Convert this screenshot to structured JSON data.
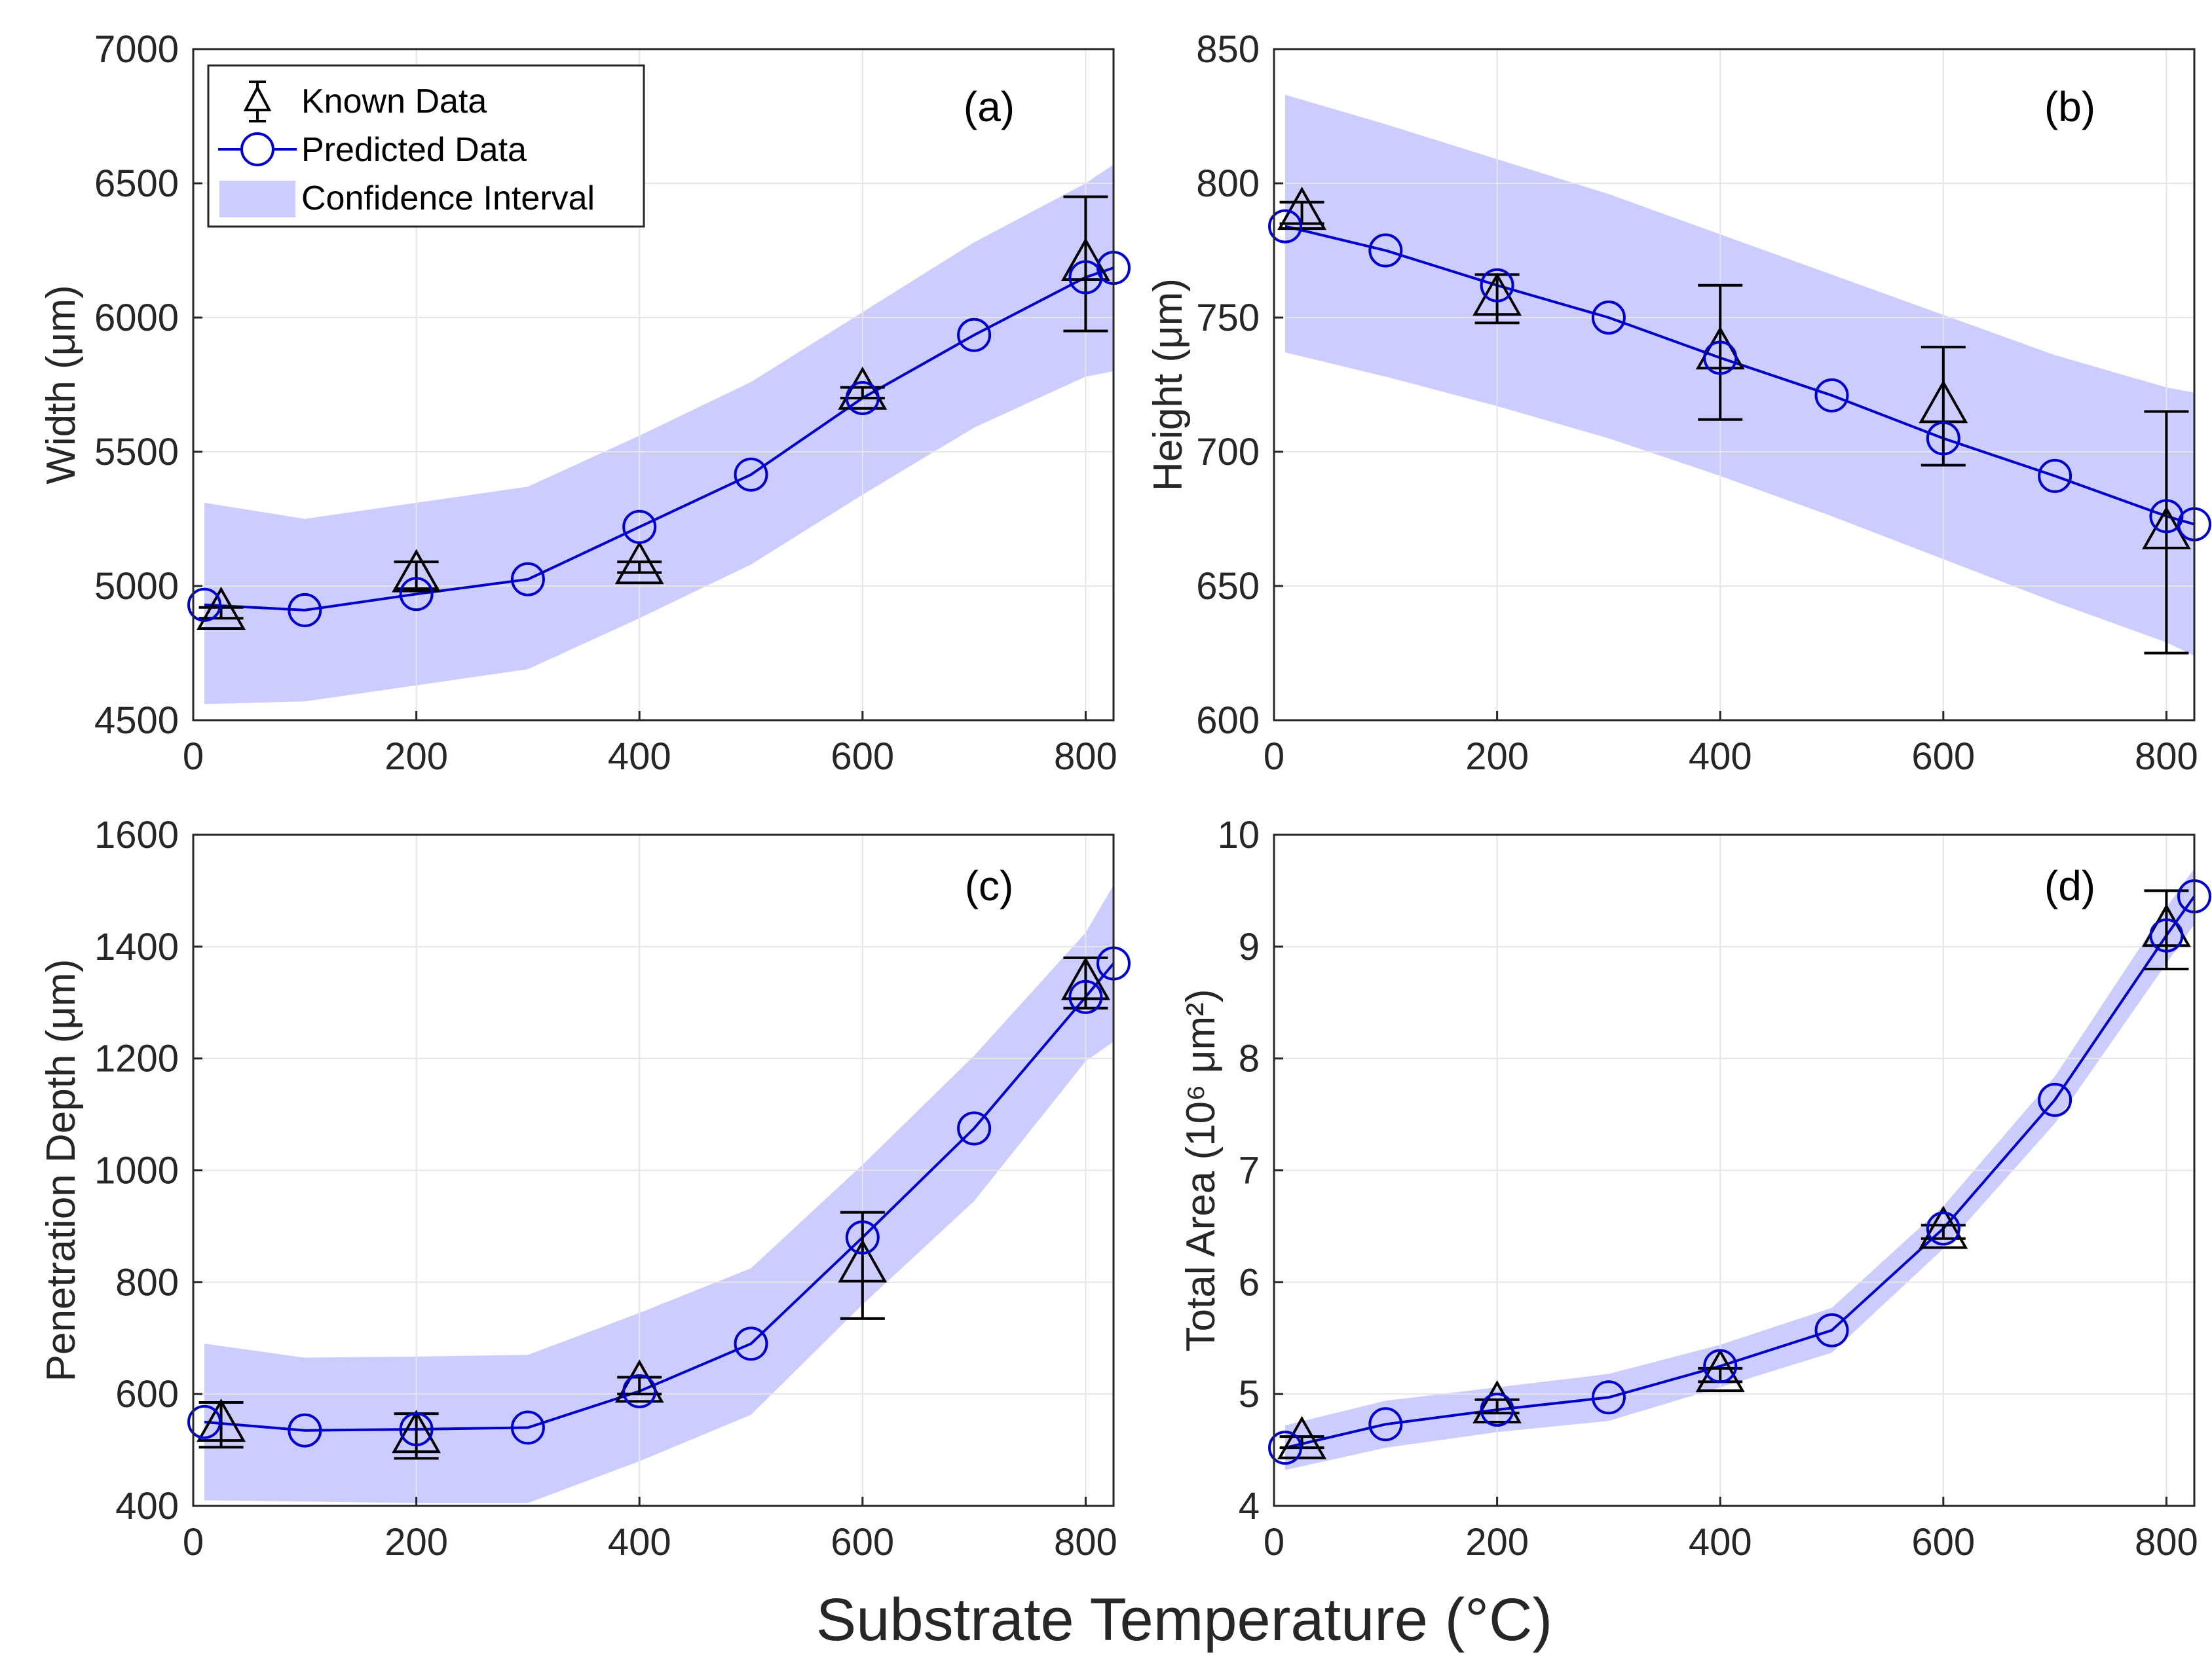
{
  "figure": {
    "xlabel": "Substrate Temperature (°C)",
    "legend": {
      "known": "Known Data",
      "predicted": "Predicted Data",
      "ci": "Confidence Interval",
      "placement": "top-left of panel (a)"
    }
  },
  "colors": {
    "predicted": "#0000CC",
    "known": "#000000",
    "ci_fill": "#CCCCFF",
    "grid": "#E6E6E6",
    "axis": "#262626"
  },
  "chart_data": [
    {
      "type": "line",
      "panel": "(a)",
      "ylabel": "Width (μm)",
      "xlim": [
        0,
        825
      ],
      "ylim": [
        4500,
        7000
      ],
      "xticks": [
        0,
        200,
        400,
        600,
        800
      ],
      "yticks": [
        4500,
        5000,
        5500,
        6000,
        6500,
        7000
      ],
      "grid": true,
      "series": [
        {
          "name": "Predicted Data",
          "x": [
            10,
            100,
            200,
            300,
            400,
            500,
            600,
            700,
            800,
            825
          ],
          "y": [
            4930,
            4910,
            4970,
            5025,
            5220,
            5415,
            5700,
            5935,
            6150,
            6185
          ]
        },
        {
          "name": "Known Data",
          "x": [
            25,
            200,
            400,
            600,
            800
          ],
          "y": [
            4900,
            5040,
            5070,
            5720,
            6200
          ],
          "err": [
            20,
            50,
            20,
            20,
            250
          ]
        },
        {
          "name": "Confidence Interval",
          "x": [
            10,
            100,
            200,
            300,
            400,
            500,
            600,
            700,
            800,
            825
          ],
          "lower": [
            4560,
            4570,
            4630,
            4690,
            4880,
            5080,
            5340,
            5590,
            5780,
            5800
          ],
          "upper": [
            5310,
            5250,
            5310,
            5370,
            5560,
            5760,
            6020,
            6280,
            6500,
            6570
          ]
        }
      ]
    },
    {
      "type": "line",
      "panel": "(b)",
      "ylabel": "Height (μm)",
      "xlim": [
        0,
        825
      ],
      "ylim": [
        600,
        850
      ],
      "xticks": [
        0,
        200,
        400,
        600,
        800
      ],
      "yticks": [
        600,
        650,
        700,
        750,
        800,
        850
      ],
      "grid": true,
      "series": [
        {
          "name": "Predicted Data",
          "x": [
            10,
            100,
            200,
            300,
            400,
            500,
            600,
            700,
            800,
            825
          ],
          "y": [
            784,
            775,
            762,
            750,
            735,
            721,
            705,
            691,
            676,
            673
          ]
        },
        {
          "name": "Known Data",
          "x": [
            25,
            200,
            400,
            600,
            800
          ],
          "y": [
            789,
            757,
            737,
            717,
            670
          ],
          "err": [
            4,
            9,
            25,
            22,
            45
          ]
        },
        {
          "name": "Confidence Interval",
          "x": [
            10,
            100,
            200,
            300,
            400,
            500,
            600,
            700,
            800,
            825
          ],
          "lower": [
            737,
            728,
            717,
            705,
            691,
            676,
            660,
            644,
            629,
            624
          ],
          "upper": [
            833,
            822,
            809,
            796,
            781,
            766,
            751,
            736,
            724,
            722
          ]
        }
      ]
    },
    {
      "type": "line",
      "panel": "(c)",
      "ylabel": "Penetration Depth (μm)",
      "xlim": [
        0,
        825
      ],
      "ylim": [
        400,
        1600
      ],
      "xticks": [
        0,
        200,
        400,
        600,
        800
      ],
      "yticks": [
        400,
        600,
        800,
        1000,
        1200,
        1400,
        1600
      ],
      "grid": true,
      "series": [
        {
          "name": "Predicted Data",
          "x": [
            10,
            100,
            200,
            300,
            400,
            500,
            600,
            700,
            800,
            825
          ],
          "y": [
            550,
            535,
            537,
            540,
            605,
            690,
            880,
            1075,
            1310,
            1370
          ]
        },
        {
          "name": "Known Data",
          "x": [
            25,
            200,
            400,
            600,
            800
          ],
          "y": [
            545,
            525,
            615,
            830,
            1335
          ],
          "err": [
            40,
            40,
            15,
            95,
            45
          ]
        },
        {
          "name": "Confidence Interval",
          "x": [
            10,
            100,
            200,
            300,
            400,
            500,
            600,
            700,
            800,
            825
          ],
          "lower": [
            410,
            408,
            405,
            405,
            480,
            563,
            760,
            945,
            1195,
            1230
          ],
          "upper": [
            690,
            665,
            667,
            670,
            745,
            825,
            1010,
            1205,
            1425,
            1510
          ]
        }
      ]
    },
    {
      "type": "line",
      "panel": "(d)",
      "ylabel": "Total Area (10⁶ μm²)",
      "xlim": [
        0,
        825
      ],
      "ylim": [
        4,
        10
      ],
      "xticks": [
        0,
        200,
        400,
        600,
        800
      ],
      "yticks": [
        4,
        5,
        6,
        7,
        8,
        9,
        10
      ],
      "grid": true,
      "series": [
        {
          "name": "Predicted Data",
          "x": [
            10,
            100,
            200,
            300,
            400,
            500,
            600,
            700,
            800,
            825
          ],
          "y": [
            4.52,
            4.73,
            4.86,
            4.97,
            5.25,
            5.57,
            6.48,
            7.63,
            9.1,
            9.45
          ]
        },
        {
          "name": "Known Data",
          "x": [
            25,
            200,
            400,
            600,
            800
          ],
          "y": [
            4.57,
            4.89,
            5.17,
            6.45,
            9.15
          ],
          "err": [
            0.05,
            0.06,
            0.06,
            0.06,
            0.35
          ]
        },
        {
          "name": "Confidence Interval",
          "x": [
            10,
            100,
            200,
            300,
            400,
            500,
            600,
            700,
            800,
            825
          ],
          "lower": [
            4.32,
            4.52,
            4.66,
            4.76,
            5.06,
            5.37,
            6.3,
            7.42,
            8.85,
            9.2
          ],
          "upper": [
            4.72,
            4.94,
            5.06,
            5.18,
            5.44,
            5.77,
            6.68,
            7.84,
            9.35,
            9.7
          ]
        }
      ]
    }
  ]
}
